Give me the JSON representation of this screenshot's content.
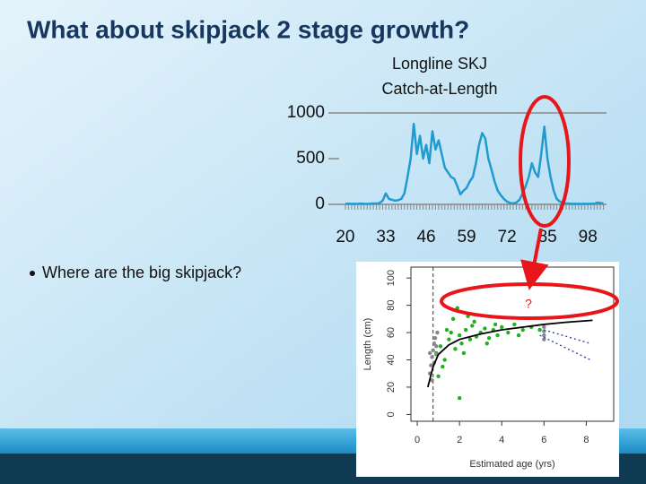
{
  "slide": {
    "title": "What about skipjack 2 stage growth?",
    "bullets": [
      "Where are the big skipjack?"
    ],
    "annotation": "?"
  },
  "chart_data": [
    {
      "type": "line",
      "title_lines": [
        "Longline SKJ",
        "Catch-at-Length"
      ],
      "color": "#1f9bcf",
      "x": [
        20,
        21,
        22,
        23,
        24,
        25,
        26,
        27,
        28,
        29,
        30,
        31,
        32,
        33,
        34,
        35,
        36,
        37,
        38,
        39,
        40,
        41,
        42,
        43,
        44,
        45,
        46,
        47,
        48,
        49,
        50,
        51,
        52,
        53,
        54,
        55,
        56,
        57,
        58,
        59,
        60,
        61,
        62,
        63,
        64,
        65,
        66,
        67,
        68,
        69,
        70,
        71,
        72,
        73,
        74,
        75,
        76,
        77,
        78,
        79,
        80,
        81,
        82,
        83,
        84,
        85,
        86,
        87,
        88,
        89,
        90,
        91,
        92,
        93,
        94,
        95,
        96,
        97,
        98,
        99,
        100,
        101,
        102,
        103
      ],
      "values": [
        5,
        8,
        5,
        6,
        5,
        8,
        6,
        5,
        7,
        10,
        8,
        15,
        40,
        120,
        60,
        50,
        40,
        45,
        60,
        120,
        300,
        500,
        880,
        550,
        750,
        500,
        650,
        450,
        800,
        600,
        700,
        550,
        400,
        350,
        300,
        280,
        200,
        110,
        150,
        180,
        250,
        300,
        450,
        650,
        780,
        720,
        500,
        380,
        250,
        150,
        100,
        60,
        30,
        15,
        10,
        20,
        50,
        120,
        200,
        300,
        450,
        350,
        300,
        550,
        850,
        500,
        300,
        150,
        60,
        30,
        15,
        10,
        8,
        5,
        6,
        5,
        5,
        6,
        5,
        8,
        5,
        20,
        15,
        10
      ],
      "xlim": [
        18,
        104
      ],
      "xticks": [
        20,
        33,
        46,
        59,
        72,
        85,
        98
      ],
      "ylim": [
        0,
        1000
      ],
      "yticks": [
        0,
        500,
        1000
      ]
    },
    {
      "type": "scatter",
      "xlabel": "Estimated age (yrs)",
      "ylabel": "Length (cm)",
      "xlim": [
        -0.3,
        9.3
      ],
      "xticks": [
        0,
        2,
        4,
        6,
        8
      ],
      "ylim": [
        -5,
        108
      ],
      "yticks": [
        0,
        20,
        40,
        60,
        80,
        100
      ],
      "reference_x": 0.75,
      "series": [
        {
          "kind": "points",
          "color": "#22b022",
          "x": [
            0.9,
            1.1,
            1.3,
            1.5,
            1.6,
            1.8,
            2.0,
            2.1,
            2.3,
            2.5,
            2.6,
            2.8,
            3.0,
            3.2,
            3.4,
            3.6,
            3.8,
            4.0,
            4.3,
            4.6,
            5.0,
            5.4,
            1.2,
            1.7,
            2.2,
            2.7,
            3.3,
            1.4,
            2.4,
            3.7,
            1.0,
            4.8,
            5.8,
            2.0,
            1.9
          ],
          "values": [
            45,
            50,
            40,
            55,
            60,
            48,
            58,
            52,
            62,
            55,
            65,
            57,
            60,
            63,
            56,
            62,
            58,
            64,
            60,
            66,
            62,
            64,
            35,
            70,
            45,
            68,
            52,
            62,
            72,
            66,
            28,
            58,
            62,
            12,
            78
          ]
        },
        {
          "kind": "points",
          "color": "#888888",
          "x": [
            0.6,
            0.65,
            0.7,
            0.75,
            0.8,
            0.85,
            0.9,
            0.95,
            0.7,
            0.8,
            0.9,
            0.6,
            6.0,
            6.0,
            6.0,
            6.0
          ],
          "values": [
            30,
            36,
            42,
            47,
            52,
            56,
            44,
            60,
            25,
            38,
            50,
            45,
            55,
            58,
            61,
            64
          ]
        },
        {
          "kind": "line",
          "color": "#000000",
          "x": [
            0.5,
            0.75,
            1,
            1.5,
            2,
            3,
            4,
            5,
            6,
            7,
            8.3
          ],
          "values": [
            20,
            35,
            44,
            51,
            55,
            59,
            62,
            64,
            66,
            67.5,
            69
          ]
        },
        {
          "kind": "dotted",
          "color": "#3344aa",
          "x": [
            6,
            8.2
          ],
          "values": [
            62,
            52
          ]
        },
        {
          "kind": "dotted",
          "color": "#3344aa",
          "x": [
            5.8,
            8.2
          ],
          "values": [
            58,
            40
          ]
        }
      ]
    }
  ]
}
